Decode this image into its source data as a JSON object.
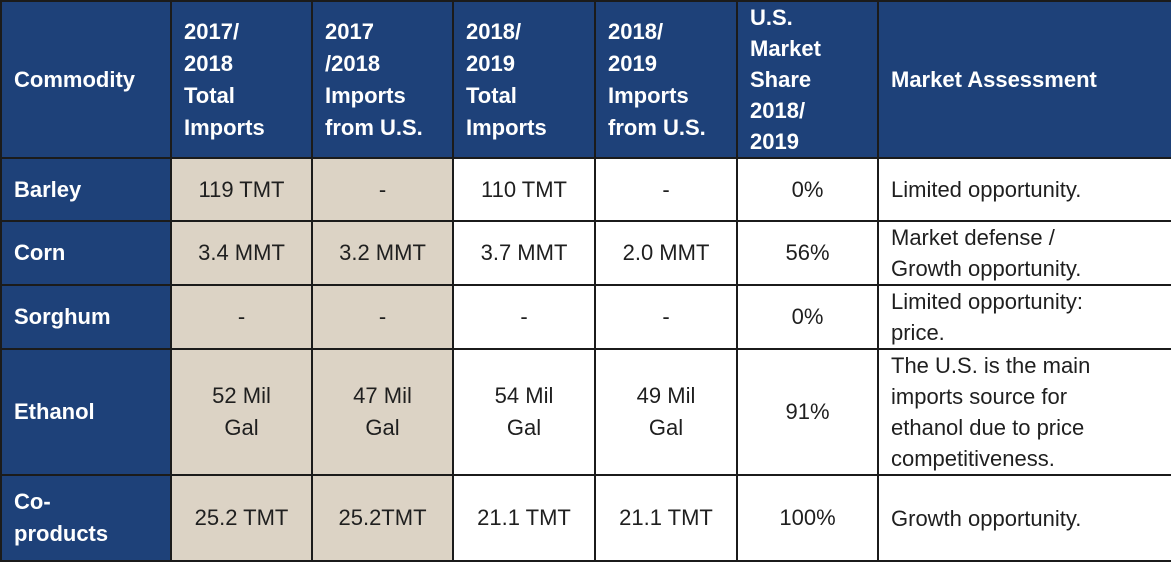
{
  "headers": [
    [
      "Commodity"
    ],
    [
      "2017/",
      "2018",
      "Total",
      "Imports"
    ],
    [
      "2017",
      "/2018",
      "Imports",
      "from U.S."
    ],
    [
      "2018/",
      "2019",
      "Total",
      "Imports"
    ],
    [
      "2018/",
      "2019",
      "Imports",
      "from U.S."
    ],
    [
      "U.S.",
      "Market",
      "Share",
      "2018/",
      "2019"
    ],
    [
      "Market Assessment"
    ]
  ],
  "rows": [
    {
      "commodity": [
        "Barley"
      ],
      "imp_1718": [
        "119 TMT"
      ],
      "us_1718": [
        "-"
      ],
      "imp_1819": [
        "110 TMT"
      ],
      "us_1819": [
        "-"
      ],
      "share": [
        "0%"
      ],
      "assessment": [
        "Limited opportunity."
      ]
    },
    {
      "commodity": [
        "Corn"
      ],
      "imp_1718": [
        "3.4 MMT"
      ],
      "us_1718": [
        "3.2 MMT"
      ],
      "imp_1819": [
        "3.7 MMT"
      ],
      "us_1819": [
        "2.0 MMT"
      ],
      "share": [
        "56%"
      ],
      "assessment": [
        "Market defense /",
        "Growth opportunity."
      ]
    },
    {
      "commodity": [
        "Sorghum"
      ],
      "imp_1718": [
        "-"
      ],
      "us_1718": [
        "-"
      ],
      "imp_1819": [
        "-"
      ],
      "us_1819": [
        "-"
      ],
      "share": [
        "0%"
      ],
      "assessment": [
        "Limited opportunity:",
        "price."
      ]
    },
    {
      "commodity": [
        "Ethanol"
      ],
      "imp_1718": [
        "52 Mil",
        "Gal"
      ],
      "us_1718": [
        "47 Mil",
        "Gal"
      ],
      "imp_1819": [
        "54 Mil",
        "Gal"
      ],
      "us_1819": [
        "49 Mil",
        "Gal"
      ],
      "share": [
        "91%"
      ],
      "assessment": [
        "The U.S. is the main",
        "imports source for",
        "ethanol due to price",
        "competitiveness."
      ]
    },
    {
      "commodity": [
        "Co-",
        "products"
      ],
      "imp_1718": [
        "25.2 TMT"
      ],
      "us_1718": [
        "25.2TMT"
      ],
      "imp_1819": [
        "21.1 TMT"
      ],
      "us_1819": [
        "21.1 TMT"
      ],
      "share": [
        "100%"
      ],
      "assessment": [
        "Growth opportunity."
      ]
    }
  ]
}
